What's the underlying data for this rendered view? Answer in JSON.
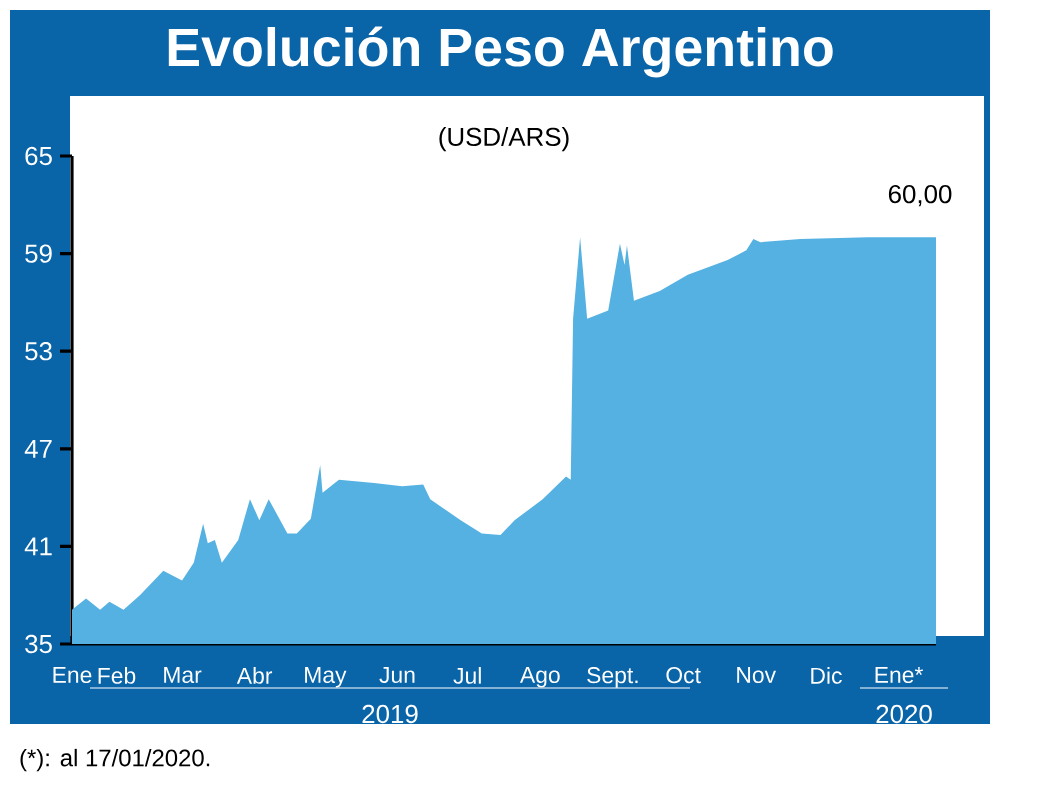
{
  "chart_data": {
    "type": "area",
    "title": "Evolución Peso Argentino",
    "subtitle": "(USD/ARS)",
    "annotations": [
      "(*): al 17/01/2020.",
      "2019",
      "2020"
    ],
    "x": [
      "2019-01-13",
      "2019-01-19",
      "2019-01-25",
      "2019-01-29",
      "2019-02-04",
      "2019-02-11",
      "2019-02-21",
      "2019-03-01",
      "2019-03-06",
      "2019-03-10",
      "2019-03-12",
      "2019-03-15",
      "2019-03-18",
      "2019-03-25",
      "2019-03-30",
      "2019-04-03",
      "2019-04-07",
      "2019-04-15",
      "2019-04-19",
      "2019-04-25",
      "2019-04-29",
      "2019-04-30",
      "2019-05-07",
      "2019-05-22",
      "2019-06-03",
      "2019-06-12",
      "2019-06-15",
      "2019-06-28",
      "2019-07-07",
      "2019-07-15",
      "2019-07-21",
      "2019-08-02",
      "2019-08-12",
      "2019-08-14",
      "2019-08-15",
      "2019-08-18",
      "2019-08-21",
      "2019-08-30",
      "2019-09-04",
      "2019-09-06",
      "2019-09-07",
      "2019-09-10",
      "2019-09-21",
      "2019-10-03",
      "2019-10-20",
      "2019-10-28",
      "2019-10-31",
      "2019-11-03",
      "2019-11-20",
      "2019-12-19",
      "2020-01-17"
    ],
    "series": [
      {
        "color": "#55b1e2",
        "values": [
          37.1,
          37.8,
          37.1,
          37.6,
          37.1,
          38.0,
          39.5,
          38.9,
          40.0,
          42.4,
          41.2,
          41.4,
          40.0,
          41.4,
          43.9,
          42.6,
          43.9,
          41.8,
          41.8,
          42.7,
          46.0,
          44.3,
          45.1,
          44.9,
          44.7,
          44.8,
          43.9,
          42.6,
          41.8,
          41.7,
          42.6,
          43.9,
          45.3,
          45.1,
          55.0,
          60.0,
          55.0,
          55.5,
          59.6,
          58.3,
          59.5,
          56.1,
          56.7,
          57.7,
          58.6,
          59.2,
          59.9,
          59.7,
          59.9,
          60.0,
          60.0
        ],
        "value_labels": [
          null,
          null,
          null,
          null,
          null,
          null,
          null,
          null,
          null,
          null,
          null,
          null,
          null,
          null,
          null,
          null,
          null,
          null,
          null,
          null,
          null,
          null,
          null,
          null,
          null,
          null,
          null,
          null,
          null,
          null,
          null,
          null,
          null,
          null,
          null,
          null,
          null,
          null,
          null,
          null,
          null,
          null,
          null,
          null,
          null,
          null,
          null,
          null,
          null,
          null,
          "60,00"
        ]
      }
    ],
    "xlim": [
      "2019-01-13",
      "2020-01-17"
    ],
    "xticks": [
      {
        "value": "2019-01-13",
        "label": "Ene"
      },
      {
        "value": "2019-02-01",
        "label": "Feb"
      },
      {
        "value": "2019-03-01",
        "label": "Mar"
      },
      {
        "value": "2019-04-01",
        "label": "Abr"
      },
      {
        "value": "2019-05-01",
        "label": "May"
      },
      {
        "value": "2019-06-01",
        "label": "Jun"
      },
      {
        "value": "2019-07-01",
        "label": "Jul"
      },
      {
        "value": "2019-08-01",
        "label": "Ago"
      },
      {
        "value": "2019-09-01",
        "label": "Sept."
      },
      {
        "value": "2019-10-01",
        "label": "Oct"
      },
      {
        "value": "2019-11-01",
        "label": "Nov"
      },
      {
        "value": "2019-12-01",
        "label": "Dic"
      },
      {
        "value": "2020-01-01",
        "label": "Ene*"
      }
    ],
    "ylim": [
      35,
      65
    ],
    "yticks": [
      35,
      41,
      47,
      53,
      59,
      65
    ],
    "grid": false
  }
}
